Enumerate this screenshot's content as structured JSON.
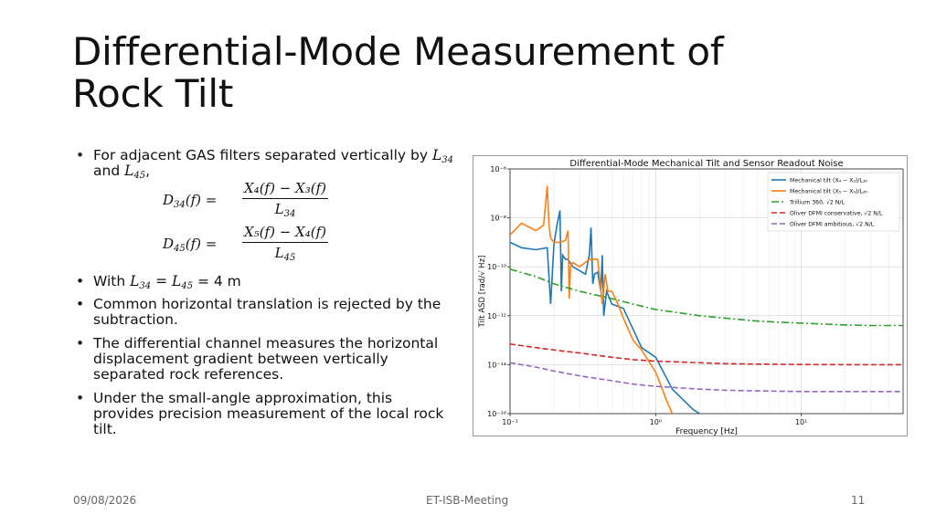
{
  "slide": {
    "title_line1": "Differential-Mode Measurement of",
    "title_line2": "Rock Tilt",
    "bullet1_text": "For adjacent GAS filters separated vertically by",
    "bullet1_L34": "L",
    "bullet1_and": " and ",
    "bullet1_end": ",",
    "eq1_lhs": "D",
    "eq1_num": "X₄(f) − X₃(f)",
    "eq1_den": "L",
    "eq2_lhs": "D",
    "eq2_num": "X₅(f) − X₄(f)",
    "eq2_den": "L",
    "bullet2_pre": "With ",
    "bullet2_eq": " = 4 m",
    "bullet3": "Common horizontal translation is rejected by the subtraction.",
    "bullet4": "The differential channel measures the horizontal displacement gradient between vertically separated rock references.",
    "bullet5": "Under the small-angle approximation, this provides precision measurement of the local rock tilt.",
    "bullet_glyph": "•",
    "sub34": "34",
    "sub45": "45"
  },
  "footer": {
    "date": "09/08/2026",
    "center": "ET-ISB-Meeting",
    "page": "11"
  },
  "chart_data": {
    "type": "line",
    "title": "Differential-Mode Mechanical Tilt and Sensor Readout Noise",
    "xlabel": "Frequency [Hz]",
    "ylabel": "Tilt ASD [rad/√ Hz]",
    "xscale": "log",
    "yscale": "log",
    "xlim": [
      0.1,
      50
    ],
    "ylim": [
      1e-16,
      1e-06
    ],
    "xticks": [
      {
        "v": 0.1,
        "label": "10⁻¹"
      },
      {
        "v": 1,
        "label": "10⁰"
      },
      {
        "v": 10,
        "label": "10¹"
      }
    ],
    "yticks": [
      {
        "v": 1e-06,
        "label": "10⁻⁶"
      },
      {
        "v": 1e-08,
        "label": "10⁻⁸"
      },
      {
        "v": 1e-10,
        "label": "10⁻¹⁰"
      },
      {
        "v": 1e-12,
        "label": "10⁻¹²"
      },
      {
        "v": 1e-14,
        "label": "10⁻¹⁴"
      },
      {
        "v": 1e-16,
        "label": "10⁻¹⁶"
      }
    ],
    "grid": true,
    "legend_position": "top-right",
    "series": [
      {
        "name": "Mechanical tilt (X₄ − X₃)/L₃₄",
        "color": "#1f77b4",
        "dash": "",
        "x": [
          0.1,
          0.12,
          0.15,
          0.18,
          0.19,
          0.2,
          0.21,
          0.22,
          0.225,
          0.23,
          0.24,
          0.25,
          0.27,
          0.3,
          0.33,
          0.35,
          0.36,
          0.37,
          0.38,
          0.4,
          0.42,
          0.43,
          0.44,
          0.46,
          0.5,
          0.6,
          0.8,
          1.0,
          1.3,
          1.6,
          1.8,
          2.0
        ],
        "y": [
          1e-09,
          6e-10,
          5e-10,
          6e-10,
          3e-12,
          8e-10,
          5e-09,
          2e-08,
          1e-11,
          3e-10,
          2e-10,
          2e-10,
          1e-10,
          7e-11,
          5e-11,
          3e-10,
          4e-09,
          2e-11,
          5e-11,
          6e-11,
          1e-11,
          3e-10,
          1e-12,
          1e-11,
          3e-12,
          2e-12,
          5e-14,
          2e-14,
          1e-15,
          3e-16,
          1.5e-16,
          1e-16
        ]
      },
      {
        "name": "Mechanical tilt (X₅ − X₄)/L₄₅",
        "color": "#ff7f0e",
        "dash": "",
        "x": [
          0.1,
          0.12,
          0.15,
          0.17,
          0.18,
          0.185,
          0.19,
          0.2,
          0.22,
          0.24,
          0.25,
          0.255,
          0.26,
          0.27,
          0.3,
          0.35,
          0.4,
          0.43,
          0.45,
          0.47,
          0.5,
          0.55,
          0.6,
          0.7,
          0.8,
          1.0,
          1.2,
          1.3
        ],
        "y": [
          2e-09,
          6e-09,
          3e-09,
          5e-09,
          2e-07,
          5e-09,
          1.5e-09,
          1e-09,
          1e-09,
          1.2e-09,
          3e-09,
          5e-12,
          1e-10,
          1.5e-10,
          1e-10,
          2e-10,
          2e-10,
          3e-12,
          5e-11,
          1e-11,
          1e-11,
          3e-12,
          8e-13,
          1e-13,
          4e-14,
          5e-15,
          3e-16,
          1e-16
        ]
      },
      {
        "name": "Trillium 360, √2 N/L",
        "color": "#2ca02c",
        "dash": "8,3,2,3",
        "x": [
          0.1,
          0.15,
          0.2,
          0.3,
          0.5,
          0.7,
          1,
          2,
          3,
          5,
          10,
          20,
          30,
          50
        ],
        "y": [
          8e-11,
          4e-11,
          2e-11,
          1e-11,
          5e-12,
          3e-12,
          1.8e-12,
          1e-12,
          8e-13,
          6e-13,
          5e-13,
          4.2e-13,
          4e-13,
          4e-13
        ]
      },
      {
        "name": "Oliver DFMI conservative, √2 N/L",
        "color": "#d62728",
        "dash": "6,3",
        "x": [
          0.1,
          0.15,
          0.2,
          0.3,
          0.5,
          0.7,
          1,
          2,
          3,
          5,
          10,
          20,
          50
        ],
        "y": [
          7e-14,
          5e-14,
          4e-14,
          3e-14,
          2e-14,
          1.6e-14,
          1.4e-14,
          1.2e-14,
          1.1e-14,
          1.05e-14,
          1.02e-14,
          1e-14,
          1e-14
        ]
      },
      {
        "name": "Oliver DFMI ambitious, √2 N/L",
        "color": "#9467bd",
        "dash": "6,3",
        "x": [
          0.1,
          0.15,
          0.2,
          0.3,
          0.5,
          0.7,
          1,
          2,
          3,
          5,
          10,
          20,
          50
        ],
        "y": [
          1.2e-14,
          8e-15,
          5.5e-15,
          3.5e-15,
          2.2e-15,
          1.6e-15,
          1.3e-15,
          1e-15,
          9e-16,
          8.5e-16,
          8e-16,
          8e-16,
          8e-16
        ]
      }
    ]
  }
}
